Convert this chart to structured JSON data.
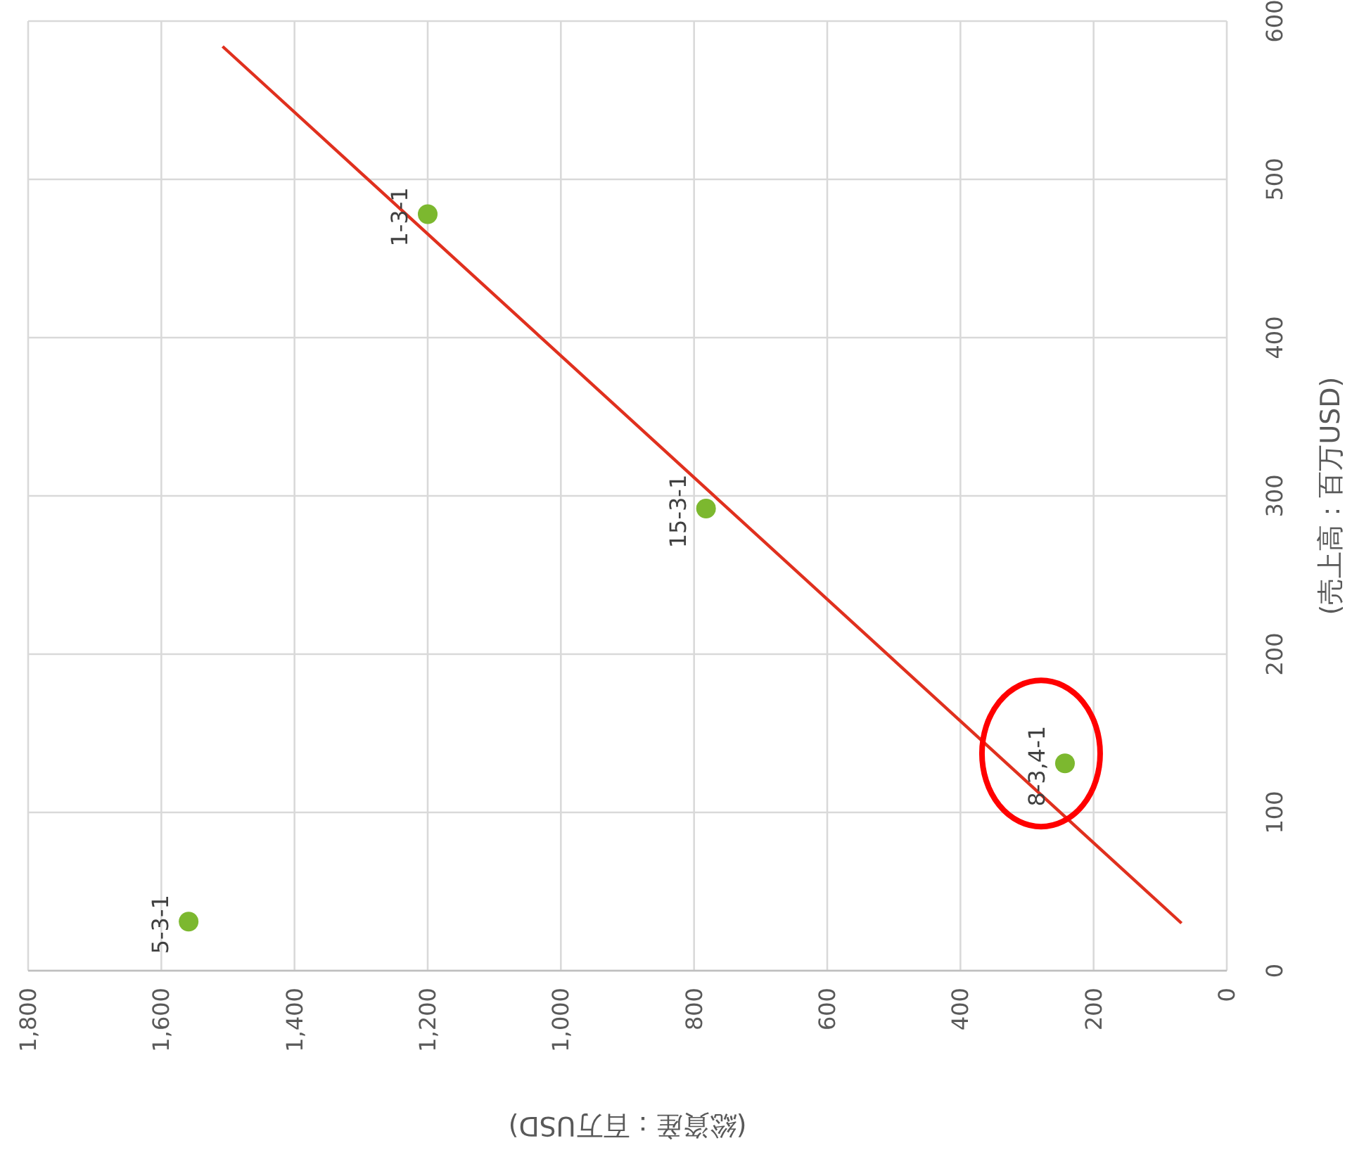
{
  "chart_data": {
    "type": "scatter",
    "xlabel": "(総資産：百万USD)",
    "ylabel": "(売上高：百万USD)",
    "series": [
      {
        "color": "#7cb82f",
        "x": [
          1200,
          782,
          243,
          1559
        ],
        "values": [
          478,
          292,
          131,
          31
        ]
      },
      {
        "type": "line",
        "marker": "none",
        "color": "#e0301e",
        "x": [
          1508,
          68
        ],
        "values": [
          584,
          30
        ]
      }
    ],
    "xlim": [
      1800,
      0
    ],
    "xticks": [
      {
        "value": 1800,
        "label": "1,800"
      },
      {
        "value": 1600,
        "label": "1,600"
      },
      {
        "value": 1400,
        "label": "1,400"
      },
      {
        "value": 1200,
        "label": "1,200"
      },
      {
        "value": 1000,
        "label": "1,000"
      },
      800,
      600,
      400,
      200,
      0
    ],
    "ylim": [
      0,
      600
    ],
    "yticks": [
      0,
      100,
      200,
      300,
      400,
      500,
      600
    ],
    "grid": true,
    "marker": "circle",
    "annotations": [
      {
        "text": "1-3-1",
        "x": 1200,
        "y": 478
      },
      {
        "text": "15-3-1",
        "x": 782,
        "y": 292
      },
      {
        "text": "8-3,4-1",
        "x": 243,
        "y": 131
      },
      {
        "text": "5-3-1",
        "x": 1559,
        "y": 31
      }
    ]
  }
}
